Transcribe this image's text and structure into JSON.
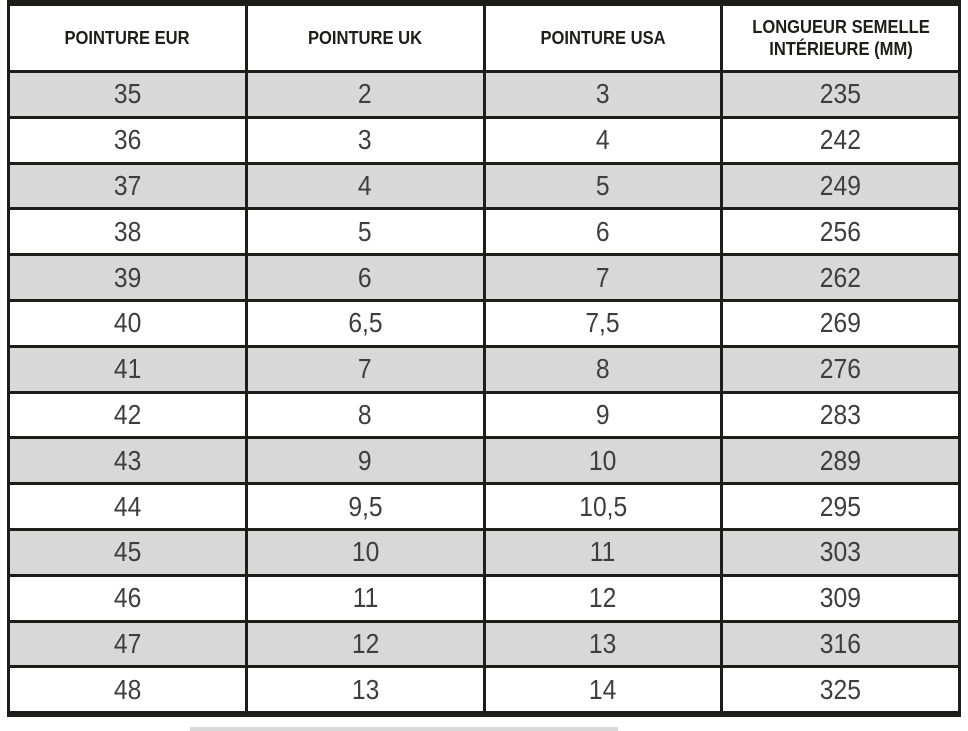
{
  "colors": {
    "border": "#1d1d1b",
    "row_alt_background": "#d8d8d8",
    "row_background": "#ffffff",
    "header_text": "#1d1d1b",
    "cell_text": "#3e3e40"
  },
  "table": {
    "headers": [
      "POINTURE EUR",
      "POINTURE UK",
      "POINTURE USA",
      "LONGUEUR SEMELLE INTÉRIEURE (MM)"
    ],
    "rows": [
      [
        "35",
        "2",
        "3",
        "235"
      ],
      [
        "36",
        "3",
        "4",
        "242"
      ],
      [
        "37",
        "4",
        "5",
        "249"
      ],
      [
        "38",
        "5",
        "6",
        "256"
      ],
      [
        "39",
        "6",
        "7",
        "262"
      ],
      [
        "40",
        "6,5",
        "7,5",
        "269"
      ],
      [
        "41",
        "7",
        "8",
        "276"
      ],
      [
        "42",
        "8",
        "9",
        "283"
      ],
      [
        "43",
        "9",
        "10",
        "289"
      ],
      [
        "44",
        "9,5",
        "10,5",
        "295"
      ],
      [
        "45",
        "10",
        "11",
        "303"
      ],
      [
        "46",
        "11",
        "12",
        "309"
      ],
      [
        "47",
        "12",
        "13",
        "316"
      ],
      [
        "48",
        "13",
        "14",
        "325"
      ]
    ]
  }
}
